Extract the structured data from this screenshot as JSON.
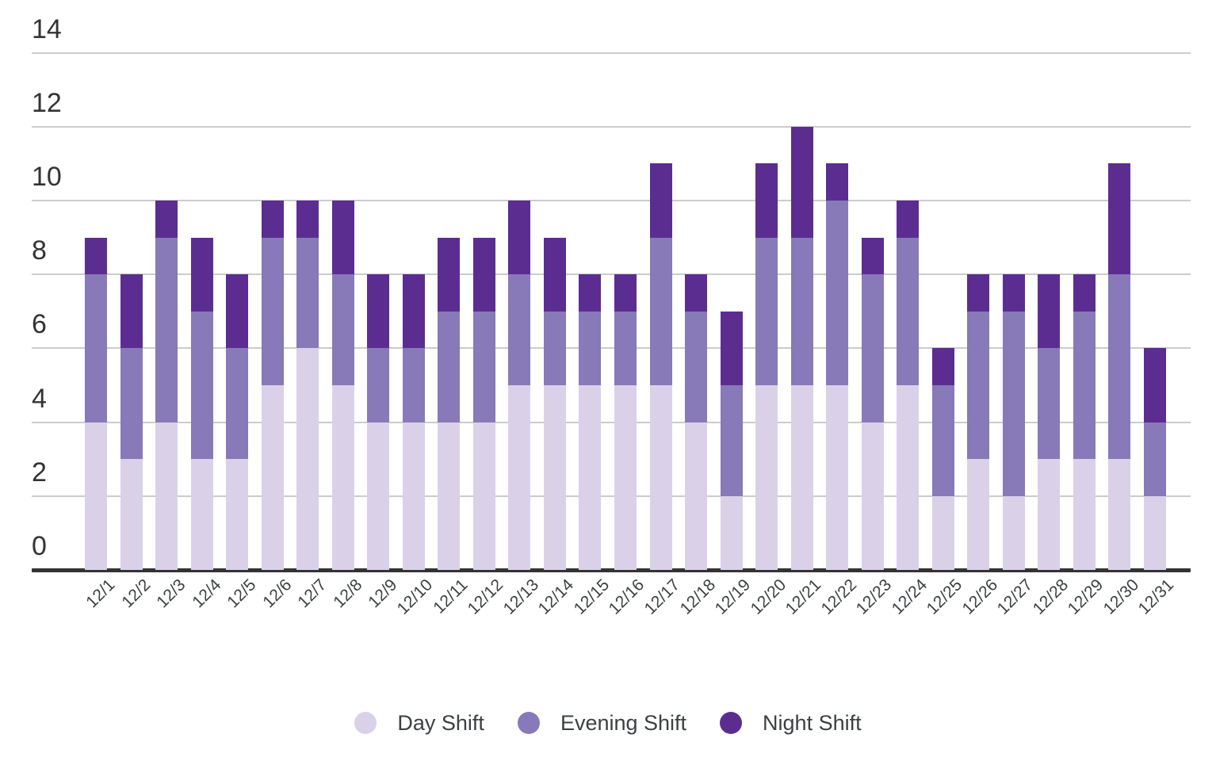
{
  "chart_data": {
    "type": "bar",
    "stacked": true,
    "title": "",
    "categories": [
      "12/1",
      "12/2",
      "12/3",
      "12/4",
      "12/5",
      "12/6",
      "12/7",
      "12/8",
      "12/9",
      "12/10",
      "12/11",
      "12/12",
      "12/13",
      "12/14",
      "12/15",
      "12/16",
      "12/17",
      "12/18",
      "12/19",
      "12/20",
      "12/21",
      "12/22",
      "12/23",
      "12/24",
      "12/25",
      "12/26",
      "12/27",
      "12/28",
      "12/29",
      "12/30",
      "12/31"
    ],
    "series": [
      {
        "name": "Day Shift",
        "color": "#dad1e9",
        "values": [
          4,
          3,
          4,
          3,
          3,
          5,
          6,
          5,
          4,
          4,
          4,
          4,
          5,
          5,
          5,
          5,
          5,
          4,
          2,
          5,
          5,
          5,
          4,
          5,
          2,
          3,
          2,
          3,
          3,
          3,
          2
        ]
      },
      {
        "name": "Evening Shift",
        "color": "#8879b8",
        "values": [
          4,
          3,
          5,
          4,
          3,
          4,
          3,
          3,
          2,
          2,
          3,
          3,
          3,
          2,
          2,
          2,
          4,
          3,
          3,
          4,
          4,
          5,
          4,
          4,
          3,
          4,
          5,
          3,
          4,
          5,
          2
        ]
      },
      {
        "name": "Night Shift",
        "color": "#5b2d91",
        "values": [
          1,
          2,
          1,
          2,
          2,
          1,
          1,
          2,
          2,
          2,
          2,
          2,
          2,
          2,
          1,
          1,
          2,
          1,
          2,
          2,
          3,
          1,
          1,
          1,
          1,
          1,
          1,
          2,
          1,
          3,
          2
        ]
      }
    ],
    "totals": [
      9,
      8,
      10,
      9,
      8,
      10,
      10,
      10,
      8,
      8,
      9,
      9,
      10,
      9,
      8,
      8,
      11,
      8,
      7,
      11,
      12,
      11,
      9,
      10,
      6,
      8,
      8,
      8,
      8,
      11,
      6
    ],
    "xlabel": "",
    "ylabel": "",
    "ylim": [
      0,
      14
    ],
    "yticks": [
      0,
      2,
      4,
      6,
      8,
      10,
      12,
      14
    ],
    "grid": "horizontal",
    "legend_position": "bottom"
  },
  "colors": {
    "gridline": "#cccccc",
    "axis_line": "#333333",
    "y_tick_text": "#333333",
    "x_tick_text": "#3c4043",
    "legend_text": "#3c4043",
    "background": "#ffffff"
  }
}
